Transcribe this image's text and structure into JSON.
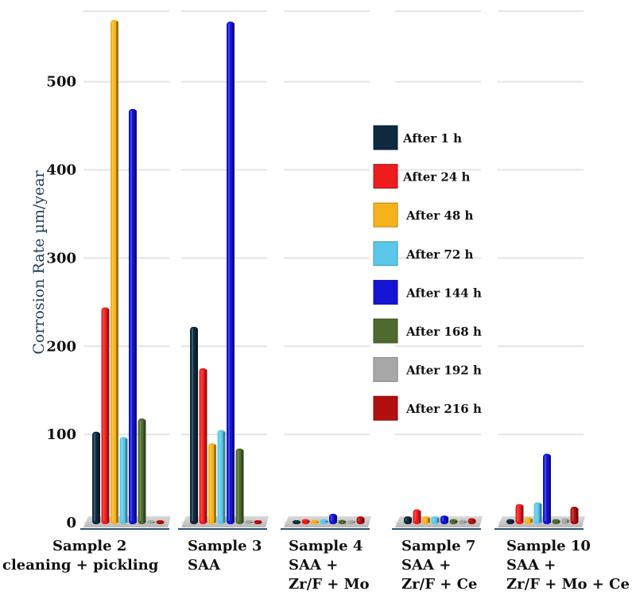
{
  "chart_data": {
    "type": "bar",
    "title": "",
    "ylabel": "Corrosion Rate µm/year",
    "xlabel": "",
    "ylim": [
      0,
      580
    ],
    "yticks": [
      0,
      100,
      200,
      300,
      400,
      500
    ],
    "grid": true,
    "legend_position": "center",
    "categories": [
      [
        "Sample 2",
        "cleaning + pickling"
      ],
      [
        "Sample 3",
        "SAA"
      ],
      [
        "Sample 4",
        "SAA +",
        "Zr/F + Mo"
      ],
      [
        "Sample 7",
        "SAA +",
        "Zr/F + Ce"
      ],
      [
        "Sample 10",
        "SAA +",
        "Zr/F + Mo + Ce"
      ]
    ],
    "series": [
      {
        "name": "After 1 h",
        "color": "#0f2a3e",
        "values": [
          103,
          222,
          2,
          7,
          4
        ]
      },
      {
        "name": "After 24 h",
        "color": "#ee1c1c",
        "values": [
          244,
          175,
          4,
          15,
          21
        ]
      },
      {
        "name": "After 48 h",
        "color": "#f6b21b",
        "values": [
          570,
          90,
          3,
          7,
          6
        ]
      },
      {
        "name": "After 72 h",
        "color": "#5bc8ea",
        "values": [
          97,
          105,
          4,
          7,
          23
        ]
      },
      {
        "name": "After 144 h",
        "color": "#1414d4",
        "values": [
          469,
          568,
          10,
          8,
          78
        ]
      },
      {
        "name": "After 168 h",
        "color": "#4e6a2e",
        "values": [
          118,
          84,
          3,
          4,
          4
        ]
      },
      {
        "name": "After 192 h",
        "color": "#a8a8a8",
        "values": [
          0,
          0,
          2,
          3,
          5
        ]
      },
      {
        "name": "After 216 h",
        "color": "#b20f0f",
        "values": [
          0,
          0,
          7,
          5,
          18
        ]
      }
    ]
  }
}
